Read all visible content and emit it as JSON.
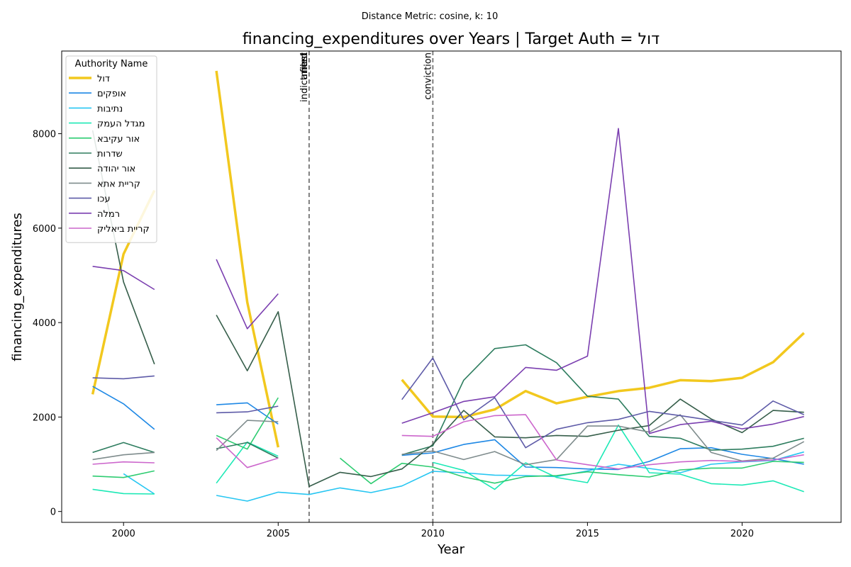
{
  "chart_data": {
    "type": "line",
    "suptitle": "Distance Metric: cosine, k: 10",
    "title": "financing_expenditures over Years | Target Auth = דול",
    "xlabel": "Year",
    "ylabel": "financing_expenditures",
    "xlim": [
      1998.0,
      2023.2
    ],
    "ylim": [
      -230,
      9750
    ],
    "xticks": [
      2000,
      2005,
      2010,
      2015,
      2020
    ],
    "yticks": [
      0,
      2000,
      4000,
      6000,
      8000
    ],
    "grid": false,
    "legend": {
      "title": "Authority Name",
      "placement": "top-left"
    },
    "events": [
      {
        "x": 2006,
        "label": "indictment"
      },
      {
        "x": 2006,
        "label": "arrest"
      },
      {
        "x": 2006,
        "label": "filed"
      },
      {
        "x": 2010,
        "label": "conviction"
      }
    ],
    "years": [
      1999,
      2000,
      2001,
      2002,
      2003,
      2004,
      2005,
      2006,
      2007,
      2008,
      2009,
      2010,
      2011,
      2012,
      2013,
      2014,
      2015,
      2016,
      2017,
      2018,
      2019,
      2020,
      2021,
      2022
    ],
    "series": [
      {
        "name": "דול",
        "color": "#f2c81e",
        "width": 3.5,
        "values": [
          2480,
          5450,
          6800,
          null,
          9330,
          4430,
          1360,
          null,
          null,
          null,
          2790,
          2010,
          2000,
          2160,
          2550,
          2290,
          2430,
          2550,
          2620,
          2780,
          2760,
          2830,
          3160,
          3780
        ]
      },
      {
        "name": "אופקים",
        "color": "#1e88e5",
        "width": 1.6,
        "values": [
          2650,
          2280,
          1740,
          null,
          2260,
          2300,
          1850,
          null,
          null,
          null,
          1190,
          1240,
          1420,
          1520,
          940,
          930,
          900,
          890,
          1060,
          1330,
          1350,
          1210,
          1120,
          1000
        ]
      },
      {
        "name": "נתיבות",
        "color": "#26c6f2",
        "width": 1.6,
        "values": [
          null,
          800,
          370,
          null,
          340,
          220,
          410,
          360,
          500,
          400,
          540,
          850,
          820,
          770,
          760,
          740,
          860,
          1000,
          910,
          820,
          1000,
          1050,
          1080,
          1260
        ]
      },
      {
        "name": "מגדל העמק",
        "color": "#1de9b6",
        "width": 1.6,
        "values": [
          470,
          380,
          370,
          null,
          600,
          1470,
          1170,
          null,
          null,
          null,
          null,
          1040,
          870,
          470,
          1030,
          720,
          610,
          1830,
          820,
          790,
          590,
          560,
          650,
          420
        ]
      },
      {
        "name": "אור עקיבא",
        "color": "#2ecc71",
        "width": 1.6,
        "values": [
          750,
          720,
          860,
          null,
          1610,
          1320,
          2410,
          null,
          1130,
          590,
          1020,
          940,
          730,
          600,
          740,
          760,
          840,
          780,
          730,
          880,
          920,
          920,
          1060,
          1040
        ]
      },
      {
        "name": "שדרות",
        "color": "#2e7d5f",
        "width": 1.6,
        "values": [
          1250,
          1460,
          1250,
          null,
          1330,
          1460,
          1130,
          null,
          null,
          null,
          1200,
          1390,
          2780,
          3450,
          3530,
          3150,
          2440,
          2380,
          1590,
          1550,
          1300,
          1320,
          1380,
          1550
        ]
      },
      {
        "name": "אור יהודה",
        "color": "#365e4a",
        "width": 1.6,
        "values": [
          8070,
          4860,
          3120,
          null,
          4160,
          2980,
          4230,
          530,
          830,
          740,
          900,
          1420,
          2140,
          1580,
          1560,
          1610,
          1590,
          1720,
          1820,
          2380,
          1960,
          1670,
          2140,
          2100
        ]
      },
      {
        "name": "קריית אתא",
        "color": "#7f8c8d",
        "width": 1.6,
        "values": [
          1100,
          1200,
          1250,
          null,
          1290,
          1930,
          1900,
          null,
          null,
          null,
          1210,
          1280,
          1100,
          1270,
          990,
          1100,
          1810,
          1810,
          1680,
          2050,
          1250,
          1070,
          1130,
          1480
        ]
      },
      {
        "name": "עכו",
        "color": "#5e5ba8",
        "width": 1.6,
        "values": [
          2830,
          2810,
          2870,
          null,
          2090,
          2110,
          2230,
          null,
          null,
          null,
          2370,
          3250,
          1940,
          2410,
          1350,
          1740,
          1880,
          1950,
          2120,
          2030,
          1930,
          1830,
          2340,
          2050
        ]
      },
      {
        "name": "רמלה",
        "color": "#7b3fb0",
        "width": 1.6,
        "values": [
          5190,
          5100,
          4700,
          null,
          5340,
          3870,
          4610,
          null,
          null,
          null,
          1870,
          2090,
          2330,
          2430,
          3050,
          2990,
          3290,
          8110,
          1650,
          1840,
          1910,
          1750,
          1850,
          2010
        ]
      },
      {
        "name": "קריית ביאליק",
        "color": "#cc66cc",
        "width": 1.6,
        "values": [
          1000,
          1050,
          1030,
          null,
          1560,
          930,
          1130,
          null,
          null,
          null,
          1610,
          1590,
          1900,
          2030,
          2050,
          1090,
          990,
          900,
          990,
          1050,
          1080,
          1060,
          1090,
          1200
        ]
      }
    ]
  }
}
